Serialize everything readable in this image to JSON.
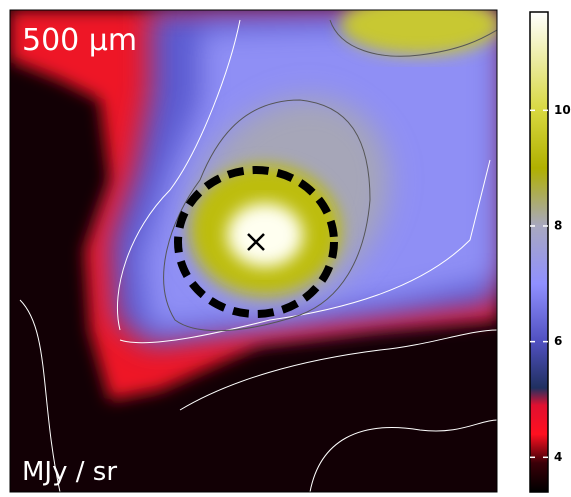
{
  "chart_data": {
    "type": "image",
    "title": "500 μm",
    "unit_label": "MJy / sr",
    "colorbar": {
      "ylim": [
        3.4,
        11.7
      ],
      "yticks": [
        4,
        6,
        8,
        10
      ],
      "colormap": [
        {
          "value": 3.4,
          "color": "#000000"
        },
        {
          "value": 3.9,
          "color": "#3a0008"
        },
        {
          "value": 4.4,
          "color": "#ff1020"
        },
        {
          "value": 4.9,
          "color": "#e01030"
        },
        {
          "value": 5.2,
          "color": "#203060"
        },
        {
          "value": 6.0,
          "color": "#5050c0"
        },
        {
          "value": 7.0,
          "color": "#9090ff"
        },
        {
          "value": 8.0,
          "color": "#a8a8c0"
        },
        {
          "value": 9.0,
          "color": "#b0b000"
        },
        {
          "value": 10.0,
          "color": "#d8d840"
        },
        {
          "value": 11.7,
          "color": "#ffffff"
        }
      ]
    }
  }
}
